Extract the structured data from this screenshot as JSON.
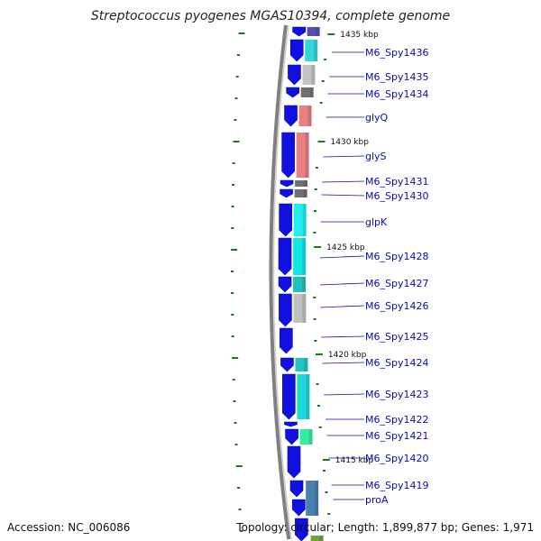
{
  "title": "Streptococcus pyogenes MGAS10394, complete genome",
  "accession": "Accession: NC_006086",
  "topology": "Topology: circular; Length: 1,899,877 bp; Genes: 1,971",
  "ticks": [
    {
      "label": "1435 kbp"
    },
    {
      "label": "1430 kbp"
    },
    {
      "label": "1425 kbp"
    },
    {
      "label": "1420 kbp"
    },
    {
      "label": "1415 kbp"
    }
  ],
  "genes": [
    {
      "label": "M6_Spy1436"
    },
    {
      "label": "M6_Spy1435"
    },
    {
      "label": "M6_Spy1434"
    },
    {
      "label": "glyQ"
    },
    {
      "label": "glyS"
    },
    {
      "label": "M6_Spy1431"
    },
    {
      "label": "M6_Spy1430"
    },
    {
      "label": "glpK"
    },
    {
      "label": "M6_Spy1428"
    },
    {
      "label": "M6_Spy1427"
    },
    {
      "label": "M6_Spy1426"
    },
    {
      "label": "M6_Spy1425"
    },
    {
      "label": "M6_Spy1424"
    },
    {
      "label": "M6_Spy1423"
    },
    {
      "label": "M6_Spy1422"
    },
    {
      "label": "M6_Spy1421"
    },
    {
      "label": "M6_Spy1420"
    },
    {
      "label": "M6_Spy1419"
    },
    {
      "label": "proA"
    }
  ],
  "colors": {
    "strand": "#1010e0",
    "label": "#0a0ab4",
    "tick": "#1a7a1a",
    "backbone": "#808080"
  }
}
